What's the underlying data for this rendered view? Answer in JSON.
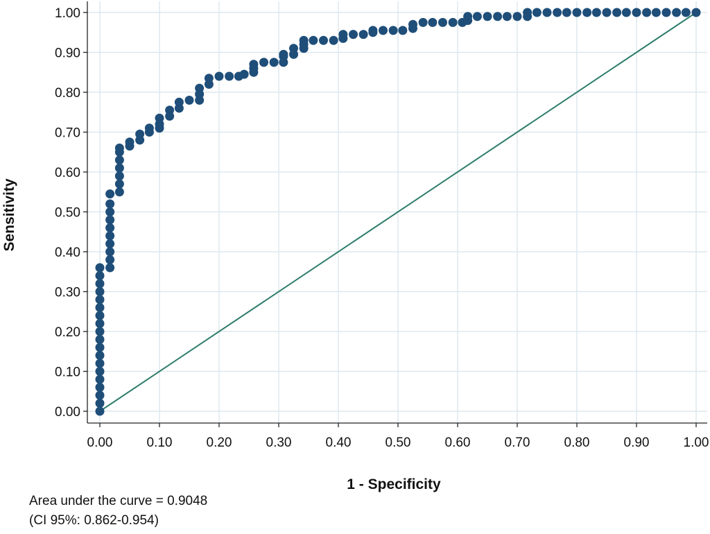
{
  "chart_data": {
    "type": "scatter",
    "xlabel": "1 - Specificity",
    "ylabel": "Sensitivity",
    "xlim": [
      0,
      1
    ],
    "ylim": [
      0,
      1
    ],
    "x_ticks": [
      "0.00",
      "0.10",
      "0.20",
      "0.30",
      "0.40",
      "0.50",
      "0.60",
      "0.70",
      "0.80",
      "0.90",
      "1.00"
    ],
    "y_ticks": [
      "0.00",
      "0.10",
      "0.20",
      "0.30",
      "0.40",
      "0.50",
      "0.60",
      "0.70",
      "0.80",
      "0.90",
      "1.00"
    ],
    "grid": true,
    "colors": {
      "points": "#1f4e79",
      "reference_line": "#2e7d6b",
      "grid": "#dde8ee"
    },
    "reference_line": {
      "from": [
        0,
        0
      ],
      "to": [
        1,
        1
      ]
    },
    "series": [
      {
        "points": [
          [
            0.0,
            0.0
          ],
          [
            0.0,
            0.02
          ],
          [
            0.0,
            0.04
          ],
          [
            0.0,
            0.06
          ],
          [
            0.0,
            0.08
          ],
          [
            0.0,
            0.1
          ],
          [
            0.0,
            0.12
          ],
          [
            0.0,
            0.14
          ],
          [
            0.0,
            0.16
          ],
          [
            0.0,
            0.18
          ],
          [
            0.0,
            0.2
          ],
          [
            0.0,
            0.22
          ],
          [
            0.0,
            0.24
          ],
          [
            0.0,
            0.26
          ],
          [
            0.0,
            0.28
          ],
          [
            0.0,
            0.3
          ],
          [
            0.0,
            0.32
          ],
          [
            0.0,
            0.34
          ],
          [
            0.0,
            0.36
          ],
          [
            0.017,
            0.36
          ],
          [
            0.017,
            0.38
          ],
          [
            0.017,
            0.4
          ],
          [
            0.017,
            0.42
          ],
          [
            0.017,
            0.44
          ],
          [
            0.017,
            0.46
          ],
          [
            0.017,
            0.48
          ],
          [
            0.017,
            0.5
          ],
          [
            0.017,
            0.52
          ],
          [
            0.017,
            0.545
          ],
          [
            0.033,
            0.55
          ],
          [
            0.033,
            0.57
          ],
          [
            0.033,
            0.59
          ],
          [
            0.033,
            0.61
          ],
          [
            0.033,
            0.63
          ],
          [
            0.033,
            0.65
          ],
          [
            0.033,
            0.66
          ],
          [
            0.05,
            0.665
          ],
          [
            0.05,
            0.675
          ],
          [
            0.067,
            0.68
          ],
          [
            0.067,
            0.695
          ],
          [
            0.083,
            0.7
          ],
          [
            0.083,
            0.71
          ],
          [
            0.1,
            0.71
          ],
          [
            0.1,
            0.72
          ],
          [
            0.1,
            0.735
          ],
          [
            0.117,
            0.74
          ],
          [
            0.117,
            0.755
          ],
          [
            0.133,
            0.76
          ],
          [
            0.133,
            0.775
          ],
          [
            0.15,
            0.78
          ],
          [
            0.167,
            0.78
          ],
          [
            0.167,
            0.795
          ],
          [
            0.167,
            0.81
          ],
          [
            0.183,
            0.82
          ],
          [
            0.183,
            0.835
          ],
          [
            0.2,
            0.84
          ],
          [
            0.217,
            0.84
          ],
          [
            0.233,
            0.84
          ],
          [
            0.242,
            0.845
          ],
          [
            0.258,
            0.85
          ],
          [
            0.258,
            0.86
          ],
          [
            0.258,
            0.87
          ],
          [
            0.275,
            0.875
          ],
          [
            0.292,
            0.875
          ],
          [
            0.308,
            0.875
          ],
          [
            0.308,
            0.89
          ],
          [
            0.308,
            0.895
          ],
          [
            0.325,
            0.895
          ],
          [
            0.325,
            0.91
          ],
          [
            0.342,
            0.91
          ],
          [
            0.342,
            0.92
          ],
          [
            0.342,
            0.93
          ],
          [
            0.358,
            0.93
          ],
          [
            0.375,
            0.93
          ],
          [
            0.392,
            0.93
          ],
          [
            0.408,
            0.935
          ],
          [
            0.408,
            0.945
          ],
          [
            0.425,
            0.945
          ],
          [
            0.442,
            0.945
          ],
          [
            0.458,
            0.95
          ],
          [
            0.458,
            0.955
          ],
          [
            0.475,
            0.955
          ],
          [
            0.492,
            0.955
          ],
          [
            0.508,
            0.955
          ],
          [
            0.525,
            0.96
          ],
          [
            0.525,
            0.97
          ],
          [
            0.542,
            0.975
          ],
          [
            0.558,
            0.975
          ],
          [
            0.575,
            0.975
          ],
          [
            0.592,
            0.975
          ],
          [
            0.608,
            0.975
          ],
          [
            0.617,
            0.98
          ],
          [
            0.617,
            0.99
          ],
          [
            0.633,
            0.99
          ],
          [
            0.65,
            0.99
          ],
          [
            0.667,
            0.99
          ],
          [
            0.683,
            0.99
          ],
          [
            0.7,
            0.99
          ],
          [
            0.717,
            0.99
          ],
          [
            0.717,
            1.0
          ],
          [
            0.733,
            1.0
          ],
          [
            0.75,
            1.0
          ],
          [
            0.767,
            1.0
          ],
          [
            0.783,
            1.0
          ],
          [
            0.8,
            1.0
          ],
          [
            0.817,
            1.0
          ],
          [
            0.833,
            1.0
          ],
          [
            0.85,
            1.0
          ],
          [
            0.867,
            1.0
          ],
          [
            0.883,
            1.0
          ],
          [
            0.9,
            1.0
          ],
          [
            0.917,
            1.0
          ],
          [
            0.933,
            1.0
          ],
          [
            0.95,
            1.0
          ],
          [
            0.967,
            1.0
          ],
          [
            0.983,
            1.0
          ],
          [
            1.0,
            1.0
          ]
        ]
      }
    ],
    "annotations": [
      "Area under the curve = 0.9048",
      "(CI 95%: 0.862-0.954)"
    ]
  }
}
